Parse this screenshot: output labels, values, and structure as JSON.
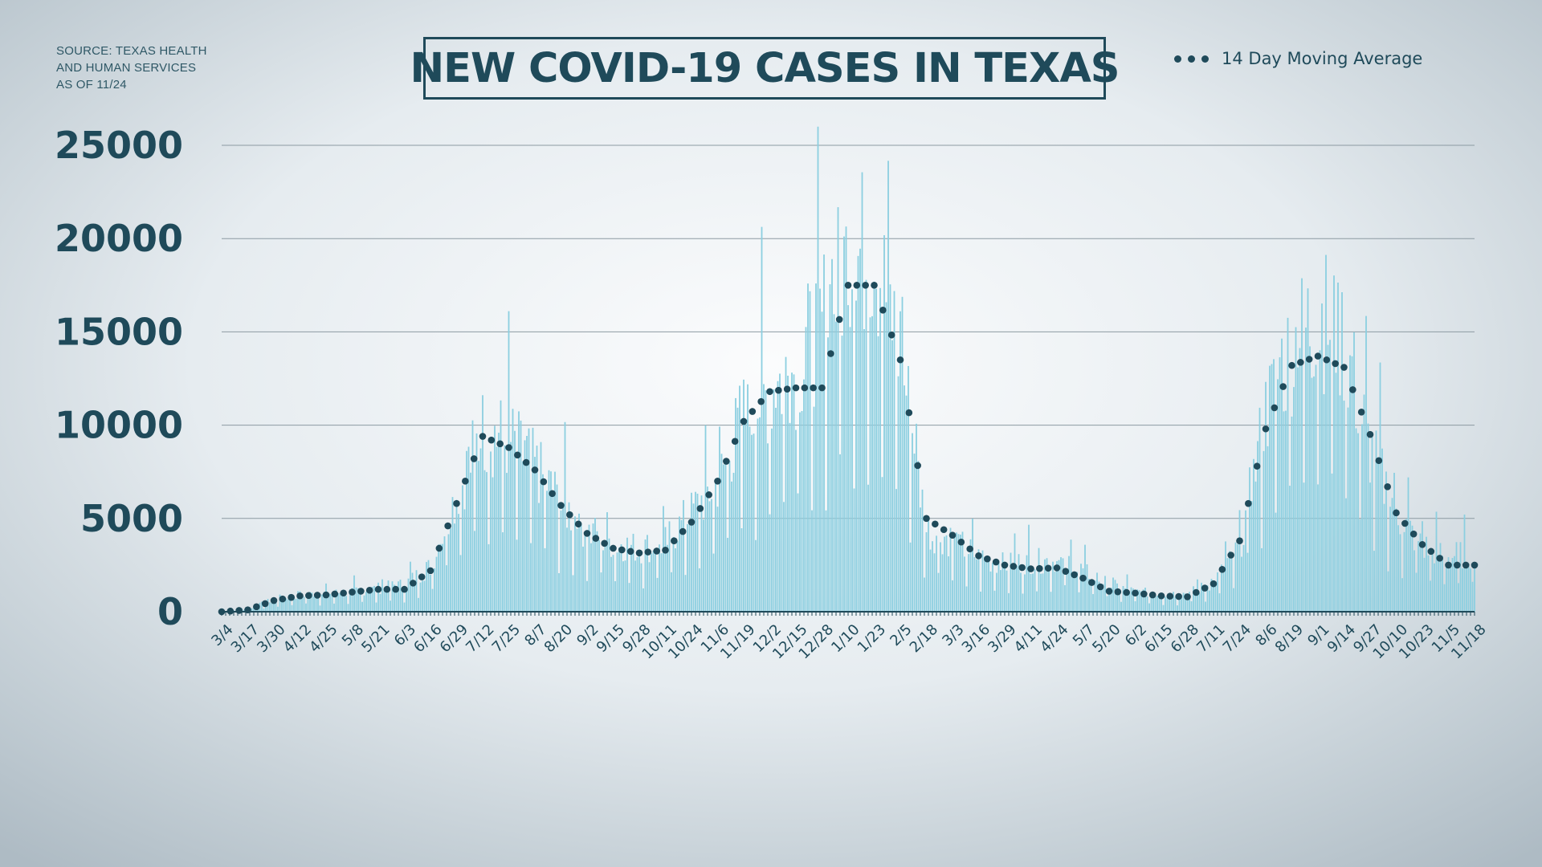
{
  "source": {
    "line1": "SOURCE: TEXAS HEALTH",
    "line2": "AND HUMAN SERVICES",
    "line3": "AS OF 11/24"
  },
  "colors": {
    "bar": "#8ccfe0",
    "line": "#1f4a5a",
    "grid": "#8c9aa2",
    "text": "#1f4a5a"
  },
  "chart_data": {
    "type": "bar",
    "title": "NEW COVID-19 CASES IN TEXAS",
    "xlabel": "",
    "ylabel": "",
    "ylim": [
      0,
      26000
    ],
    "y_ticks": [
      0,
      5000,
      10000,
      15000,
      20000,
      25000
    ],
    "grid": true,
    "legend_position": "top-right",
    "categories": [
      "3/4",
      "3/17",
      "3/30",
      "4/12",
      "4/25",
      "5/8",
      "5/21",
      "6/3",
      "6/16",
      "6/29",
      "7/12",
      "7/25",
      "8/7",
      "8/20",
      "9/2",
      "9/15",
      "9/28",
      "10/11",
      "10/24",
      "11/6",
      "11/19",
      "12/2",
      "12/15",
      "12/28",
      "1/10",
      "1/23",
      "2/5",
      "2/18",
      "3/3",
      "3/16",
      "3/29",
      "4/11",
      "4/24",
      "5/7",
      "5/20",
      "6/2",
      "6/15",
      "6/28",
      "7/11",
      "7/24",
      "8/6",
      "8/19",
      "9/1",
      "9/14",
      "9/27",
      "10/10",
      "10/23",
      "11/5",
      "11/18"
    ],
    "daily_cases_approx": [
      5,
      150,
      700,
      950,
      1000,
      1100,
      1300,
      1500,
      2500,
      6500,
      10000,
      9500,
      8000,
      6000,
      4500,
      3800,
      3500,
      3800,
      5500,
      7200,
      10800,
      12200,
      13500,
      16000,
      19500,
      20000,
      14500,
      4500,
      4000,
      3000,
      2600,
      2800,
      2800,
      2300,
      1500,
      1100,
      1000,
      1000,
      1600,
      3500,
      11000,
      14500,
      16500,
      15000,
      9000,
      5500,
      3600,
      3100,
      3200
    ],
    "series": [
      {
        "name": "14 Day Moving Average",
        "values": [
          0,
          100,
          600,
          850,
          900,
          1050,
          1200,
          1200,
          2200,
          5800,
          9400,
          8800,
          7600,
          5700,
          4200,
          3400,
          3150,
          3300,
          4800,
          7000,
          10200,
          11800,
          12000,
          12000,
          17500,
          17500,
          13500,
          5000,
          4100,
          3000,
          2500,
          2300,
          2350,
          1800,
          1100,
          1000,
          850,
          800,
          1500,
          3800,
          9800,
          13200,
          13700,
          13100,
          9500,
          5300,
          3600,
          2500,
          2500
        ]
      }
    ]
  }
}
